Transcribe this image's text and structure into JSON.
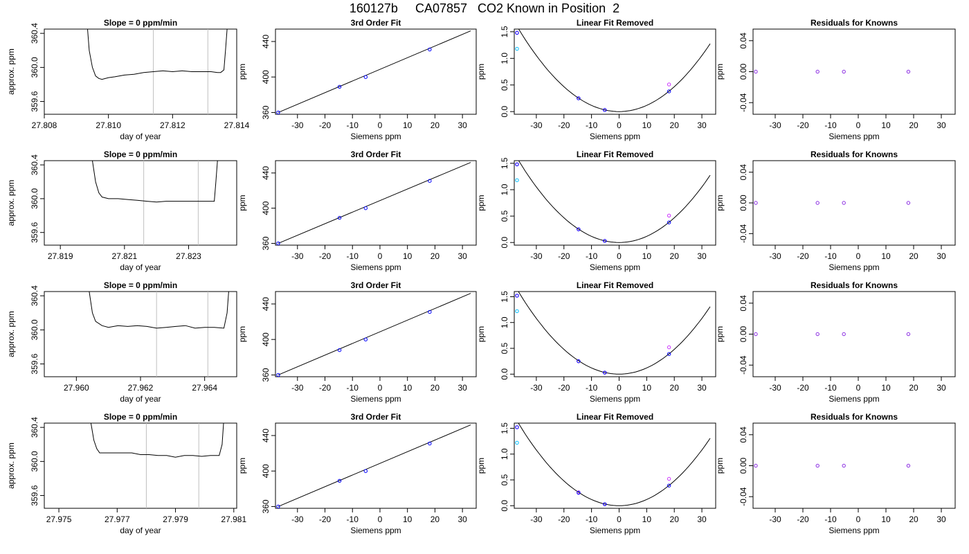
{
  "figure": {
    "title": "160127b     CA07857   CO2 Known in Position  2"
  },
  "colors": {
    "line": "#000000",
    "marker_line": "#1f77b4",
    "fit_point": "#0000ff",
    "raw_point_magenta": "#cc33ff",
    "raw_point_cyan": "#00bfff",
    "residual_point": "#8a2be2",
    "vline": "#c0c0c0"
  },
  "chart_data": [
    {
      "type": "line",
      "row": 1,
      "col": 1,
      "title": "Slope =  0  ppm/min",
      "xlabel": "day of year",
      "ylabel": "approx. ppm",
      "xlim": [
        27.808,
        27.814
      ],
      "ylim": [
        359.45,
        360.45
      ],
      "xticks": [
        27.808,
        27.81,
        27.812,
        27.814
      ],
      "xticklabels": [
        "27.808",
        "27.810",
        "27.812",
        "27.814"
      ],
      "yticks": [
        359.6,
        360.0,
        360.4
      ],
      "yticklabels": [
        "359.6",
        "360.0",
        "360.4"
      ],
      "vlines": [
        27.8114,
        27.8131
      ],
      "series": [
        {
          "x": [
            27.80935,
            27.8094,
            27.8095,
            27.8096,
            27.8097,
            27.8098,
            27.81,
            27.8102,
            27.8105,
            27.8108,
            27.8111,
            27.8114,
            27.8117,
            27.812,
            27.8123,
            27.8126,
            27.8129,
            27.8132,
            27.8134,
            27.8135,
            27.8136,
            27.81365,
            27.8137
          ],
          "y": [
            360.45,
            360.2,
            360.0,
            359.9,
            359.87,
            359.86,
            359.88,
            359.89,
            359.91,
            359.92,
            359.94,
            359.95,
            359.96,
            359.95,
            359.96,
            359.95,
            359.95,
            359.95,
            359.94,
            359.94,
            359.97,
            360.2,
            360.45
          ]
        }
      ]
    },
    {
      "type": "scatter",
      "row": 1,
      "col": 2,
      "title": "3rd Order Fit",
      "xlabel": "Siemens ppm",
      "ylabel": "ppm",
      "xlim": [
        -38,
        35
      ],
      "ylim": [
        358,
        454
      ],
      "xticks": [
        -30,
        -20,
        -10,
        0,
        10,
        20,
        30
      ],
      "xticklabels": [
        "-30",
        "-20",
        "-10",
        "0",
        "10",
        "20",
        "30"
      ],
      "yticks": [
        360,
        400,
        440
      ],
      "yticklabels": [
        "360",
        "400",
        "440"
      ],
      "fit_line": {
        "x": [
          -37,
          33
        ],
        "y": [
          360,
          452
        ]
      },
      "points": {
        "x": [
          -37,
          -14.7,
          -5.2,
          18.1
        ],
        "y": [
          360,
          389,
          400,
          431
        ]
      }
    },
    {
      "type": "scatter",
      "row": 1,
      "col": 3,
      "title": "Linear Fit Removed",
      "xlabel": "Siemens ppm",
      "ylabel": "ppm",
      "xlim": [
        -38,
        35
      ],
      "ylim": [
        -0.05,
        1.55
      ],
      "xticks": [
        -30,
        -20,
        -10,
        0,
        10,
        20,
        30
      ],
      "xticklabels": [
        "-30",
        "-20",
        "-10",
        "0",
        "10",
        "20",
        "30"
      ],
      "yticks": [
        0,
        0.5,
        1.0,
        1.5
      ],
      "yticklabels": [
        "0.0",
        "0.5",
        "1.0",
        "1.5"
      ],
      "curve_coef": 0.00117,
      "points": {
        "x": [
          -37,
          -14.7,
          -5.2,
          18.1
        ],
        "y": [
          1.48,
          0.25,
          0.03,
          0.38
        ]
      },
      "raw_points": {
        "x": [
          -37,
          -37,
          -14.7,
          -5.2,
          18.1
        ],
        "y": [
          1.48,
          1.18,
          0.25,
          0.03,
          0.51
        ]
      }
    },
    {
      "type": "scatter",
      "row": 1,
      "col": 4,
      "title": "Residuals for Knowns",
      "xlabel": "Siemens ppm",
      "ylabel": "ppm",
      "xlim": [
        -38,
        35
      ],
      "ylim": [
        -0.055,
        0.055
      ],
      "xticks": [
        -30,
        -20,
        -10,
        0,
        10,
        20,
        30
      ],
      "xticklabels": [
        "-30",
        "-20",
        "-10",
        "0",
        "10",
        "20",
        "30"
      ],
      "yticks": [
        -0.04,
        0,
        0.04
      ],
      "yticklabels": [
        "-0.04",
        "0.00",
        "0.04"
      ],
      "points": {
        "x": [
          -37,
          -14.7,
          -5.2,
          18.1
        ],
        "y": [
          0,
          0,
          0,
          0
        ]
      }
    },
    {
      "type": "line",
      "row": 2,
      "col": 1,
      "title": "Slope =  0  ppm/min",
      "xlabel": "day of year",
      "ylabel": "approx. ppm",
      "xlim": [
        27.8185,
        27.8245
      ],
      "ylim": [
        359.45,
        360.45
      ],
      "xticks": [
        27.819,
        27.821,
        27.823
      ],
      "xticklabels": [
        "27.819",
        "27.821",
        "27.823"
      ],
      "yticks": [
        359.6,
        360.0,
        360.4
      ],
      "yticklabels": [
        "359.6",
        "360.0",
        "360.4"
      ],
      "vlines": [
        27.8216,
        27.8233
      ],
      "series": [
        {
          "x": [
            27.82,
            27.8201,
            27.8202,
            27.8203,
            27.8205,
            27.8208,
            27.8211,
            27.8214,
            27.8217,
            27.822,
            27.8223,
            27.8226,
            27.8229,
            27.8232,
            27.8235,
            27.8238,
            27.82385,
            27.8239
          ],
          "y": [
            360.45,
            360.2,
            360.07,
            360.02,
            360.0,
            360.0,
            359.99,
            359.98,
            359.97,
            359.96,
            359.97,
            359.97,
            359.97,
            359.97,
            359.97,
            359.97,
            360.2,
            360.45
          ]
        }
      ]
    },
    {
      "type": "scatter",
      "row": 2,
      "col": 2,
      "title": "3rd Order Fit",
      "xlabel": "Siemens ppm",
      "ylabel": "ppm",
      "xlim": [
        -38,
        35
      ],
      "ylim": [
        358,
        454
      ],
      "xticks": [
        -30,
        -20,
        -10,
        0,
        10,
        20,
        30
      ],
      "xticklabels": [
        "-30",
        "-20",
        "-10",
        "0",
        "10",
        "20",
        "30"
      ],
      "yticks": [
        360,
        400,
        440
      ],
      "yticklabels": [
        "360",
        "400",
        "440"
      ],
      "fit_line": {
        "x": [
          -37,
          33
        ],
        "y": [
          360,
          452
        ]
      },
      "points": {
        "x": [
          -37,
          -14.7,
          -5.2,
          18.1
        ],
        "y": [
          360,
          389,
          400,
          431
        ]
      }
    },
    {
      "type": "scatter",
      "row": 2,
      "col": 3,
      "title": "Linear Fit Removed",
      "xlabel": "Siemens ppm",
      "ylabel": "ppm",
      "xlim": [
        -38,
        35
      ],
      "ylim": [
        -0.05,
        1.55
      ],
      "xticks": [
        -30,
        -20,
        -10,
        0,
        10,
        20,
        30
      ],
      "xticklabels": [
        "-30",
        "-20",
        "-10",
        "0",
        "10",
        "20",
        "30"
      ],
      "yticks": [
        0,
        0.5,
        1.0,
        1.5
      ],
      "yticklabels": [
        "0.0",
        "0.5",
        "1.0",
        "1.5"
      ],
      "curve_coef": 0.00117,
      "points": {
        "x": [
          -37,
          -14.7,
          -5.2,
          18.1
        ],
        "y": [
          1.48,
          0.25,
          0.03,
          0.38
        ]
      },
      "raw_points": {
        "x": [
          -37,
          -37,
          -14.7,
          -5.2,
          18.1
        ],
        "y": [
          1.48,
          1.18,
          0.25,
          0.03,
          0.51
        ]
      }
    },
    {
      "type": "scatter",
      "row": 2,
      "col": 4,
      "title": "Residuals for Knowns",
      "xlabel": "Siemens ppm",
      "ylabel": "ppm",
      "xlim": [
        -38,
        35
      ],
      "ylim": [
        -0.055,
        0.055
      ],
      "xticks": [
        -30,
        -20,
        -10,
        0,
        10,
        20,
        30
      ],
      "xticklabels": [
        "-30",
        "-20",
        "-10",
        "0",
        "10",
        "20",
        "30"
      ],
      "yticks": [
        -0.04,
        0,
        0.04
      ],
      "yticklabels": [
        "-0.04",
        "0.00",
        "0.04"
      ],
      "points": {
        "x": [
          -37,
          -14.7,
          -5.2,
          18.1
        ],
        "y": [
          0,
          0,
          0,
          0
        ]
      }
    },
    {
      "type": "line",
      "row": 3,
      "col": 1,
      "title": "Slope =  0  ppm/min",
      "xlabel": "day of year",
      "ylabel": "approx. ppm",
      "xlim": [
        27.959,
        27.965
      ],
      "ylim": [
        359.45,
        360.45
      ],
      "xticks": [
        27.96,
        27.962,
        27.964
      ],
      "xticklabels": [
        "27.960",
        "27.962",
        "27.964"
      ],
      "yticks": [
        359.6,
        360.0,
        360.4
      ],
      "yticklabels": [
        "359.6",
        "360.0",
        "360.4"
      ],
      "vlines": [
        27.9625,
        27.9641
      ],
      "series": [
        {
          "x": [
            27.9604,
            27.9605,
            27.9606,
            27.9608,
            27.961,
            27.9613,
            27.9616,
            27.9619,
            27.9622,
            27.9625,
            27.9628,
            27.9631,
            27.9634,
            27.9637,
            27.964,
            27.9643,
            27.9646,
            27.9647,
            27.96475
          ],
          "y": [
            360.45,
            360.2,
            360.1,
            360.05,
            360.03,
            360.05,
            360.04,
            360.05,
            360.04,
            360.02,
            360.03,
            360.04,
            360.05,
            360.02,
            360.03,
            360.03,
            360.02,
            360.2,
            360.45
          ]
        }
      ]
    },
    {
      "type": "scatter",
      "row": 3,
      "col": 2,
      "title": "3rd Order Fit",
      "xlabel": "Siemens ppm",
      "ylabel": "ppm",
      "xlim": [
        -38,
        35
      ],
      "ylim": [
        358,
        454
      ],
      "xticks": [
        -30,
        -20,
        -10,
        0,
        10,
        20,
        30
      ],
      "xticklabels": [
        "-30",
        "-20",
        "-10",
        "0",
        "10",
        "20",
        "30"
      ],
      "yticks": [
        360,
        400,
        440
      ],
      "yticklabels": [
        "360",
        "400",
        "440"
      ],
      "fit_line": {
        "x": [
          -37,
          33
        ],
        "y": [
          360,
          452
        ]
      },
      "points": {
        "x": [
          -37,
          -14.7,
          -5.2,
          18.1
        ],
        "y": [
          360,
          388,
          400,
          431
        ]
      }
    },
    {
      "type": "scatter",
      "row": 3,
      "col": 3,
      "title": "Linear Fit Removed",
      "xlabel": "Siemens ppm",
      "ylabel": "ppm",
      "xlim": [
        -38,
        35
      ],
      "ylim": [
        -0.05,
        1.6
      ],
      "xticks": [
        -30,
        -20,
        -10,
        0,
        10,
        20,
        30
      ],
      "xticklabels": [
        "-30",
        "-20",
        "-10",
        "0",
        "10",
        "20",
        "30"
      ],
      "yticks": [
        0,
        0.5,
        1.0,
        1.5
      ],
      "yticklabels": [
        "0.0",
        "0.5",
        "1.0",
        "1.5"
      ],
      "curve_coef": 0.0012,
      "points": {
        "x": [
          -37,
          -14.7,
          -5.2,
          18.1
        ],
        "y": [
          1.52,
          0.25,
          0.03,
          0.39
        ]
      },
      "raw_points": {
        "x": [
          -37,
          -37,
          -14.7,
          -5.2,
          18.1
        ],
        "y": [
          1.52,
          1.22,
          0.25,
          0.03,
          0.52
        ]
      }
    },
    {
      "type": "scatter",
      "row": 3,
      "col": 4,
      "title": "Residuals for Knowns",
      "xlabel": "Siemens ppm",
      "ylabel": "ppm",
      "xlim": [
        -38,
        35
      ],
      "ylim": [
        -0.055,
        0.055
      ],
      "xticks": [
        -30,
        -20,
        -10,
        0,
        10,
        20,
        30
      ],
      "xticklabels": [
        "-30",
        "-20",
        "-10",
        "0",
        "10",
        "20",
        "30"
      ],
      "yticks": [
        -0.04,
        0,
        0.04
      ],
      "yticklabels": [
        "-0.04",
        "0.00",
        "0.04"
      ],
      "points": {
        "x": [
          -37,
          -14.7,
          -5.2,
          18.1
        ],
        "y": [
          0,
          0,
          0,
          0
        ]
      }
    },
    {
      "type": "line",
      "row": 4,
      "col": 1,
      "title": "Slope =  0  ppm/min",
      "xlabel": "day of year",
      "ylabel": "approx. ppm",
      "xlim": [
        27.9745,
        27.9811
      ],
      "ylim": [
        359.45,
        360.45
      ],
      "xticks": [
        27.975,
        27.977,
        27.979,
        27.981
      ],
      "xticklabels": [
        "27.975",
        "27.977",
        "27.979",
        "27.981"
      ],
      "yticks": [
        359.6,
        360.0,
        360.4
      ],
      "yticklabels": [
        "359.6",
        "360.0",
        "360.4"
      ],
      "vlines": [
        27.978,
        27.9798
      ],
      "series": [
        {
          "x": [
            27.9761,
            27.9762,
            27.9763,
            27.9764,
            27.9766,
            27.9769,
            27.9772,
            27.9775,
            27.9778,
            27.9781,
            27.9784,
            27.9787,
            27.979,
            27.9793,
            27.9796,
            27.9799,
            27.9802,
            27.9805,
            27.9806,
            27.98065
          ],
          "y": [
            360.45,
            360.25,
            360.15,
            360.1,
            360.1,
            360.1,
            360.1,
            360.1,
            360.08,
            360.08,
            360.07,
            360.07,
            360.05,
            360.07,
            360.07,
            360.06,
            360.07,
            360.07,
            360.2,
            360.45
          ]
        }
      ]
    },
    {
      "type": "scatter",
      "row": 4,
      "col": 2,
      "title": "3rd Order Fit",
      "xlabel": "Siemens ppm",
      "ylabel": "ppm",
      "xlim": [
        -38,
        35
      ],
      "ylim": [
        358,
        454
      ],
      "xticks": [
        -30,
        -20,
        -10,
        0,
        10,
        20,
        30
      ],
      "xticklabels": [
        "-30",
        "-20",
        "-10",
        "0",
        "10",
        "20",
        "30"
      ],
      "yticks": [
        360,
        400,
        440
      ],
      "yticklabels": [
        "360",
        "400",
        "440"
      ],
      "fit_line": {
        "x": [
          -37,
          33
        ],
        "y": [
          360,
          452
        ]
      },
      "points": {
        "x": [
          -37,
          -14.7,
          -5.2,
          18.1
        ],
        "y": [
          360,
          389,
          400,
          431
        ]
      }
    },
    {
      "type": "scatter",
      "row": 4,
      "col": 3,
      "title": "Linear Fit Removed",
      "xlabel": "Siemens ppm",
      "ylabel": "ppm",
      "xlim": [
        -38,
        35
      ],
      "ylim": [
        -0.05,
        1.6
      ],
      "xticks": [
        -30,
        -20,
        -10,
        0,
        10,
        20,
        30
      ],
      "xticklabels": [
        "-30",
        "-20",
        "-10",
        "0",
        "10",
        "20",
        "30"
      ],
      "yticks": [
        0,
        0.5,
        1.0,
        1.5
      ],
      "yticklabels": [
        "0.0",
        "0.5",
        "1.0",
        "1.5"
      ],
      "curve_coef": 0.0012,
      "points": {
        "x": [
          -37,
          -14.7,
          -5.2,
          18.1
        ],
        "y": [
          1.52,
          0.25,
          0.03,
          0.39
        ]
      },
      "raw_points": {
        "x": [
          -37,
          -37,
          -14.7,
          -5.2,
          18.1
        ],
        "y": [
          1.52,
          1.22,
          0.26,
          0.03,
          0.52
        ]
      }
    },
    {
      "type": "scatter",
      "row": 4,
      "col": 4,
      "title": "Residuals for Knowns",
      "xlabel": "Siemens ppm",
      "ylabel": "ppm",
      "xlim": [
        -38,
        35
      ],
      "ylim": [
        -0.055,
        0.055
      ],
      "xticks": [
        -30,
        -20,
        -10,
        0,
        10,
        20,
        30
      ],
      "xticklabels": [
        "-30",
        "-20",
        "-10",
        "0",
        "10",
        "20",
        "30"
      ],
      "yticks": [
        -0.04,
        0,
        0.04
      ],
      "yticklabels": [
        "-0.04",
        "0.00",
        "0.04"
      ],
      "points": {
        "x": [
          -37,
          -14.7,
          -5.2,
          18.1
        ],
        "y": [
          0,
          0,
          0,
          0
        ]
      }
    }
  ]
}
